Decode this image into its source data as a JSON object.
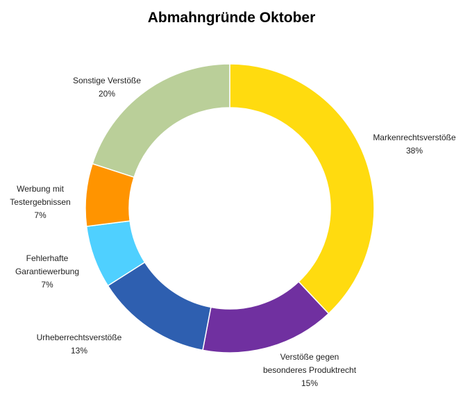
{
  "chart_data": {
    "type": "pie",
    "variant": "donut",
    "title": "Abmahngründe Oktober",
    "legend": "none",
    "slices": [
      {
        "label": [
          "Markenrechtsverstöße"
        ],
        "percent_label": "38%",
        "value": 38,
        "color": "#FFDB0F"
      },
      {
        "label": [
          "Verstöße gegen",
          "besonderes Produktrecht"
        ],
        "percent_label": "15%",
        "value": 15,
        "color": "#7030A0"
      },
      {
        "label": [
          "Urheberrechtsverstöße"
        ],
        "percent_label": "13%",
        "value": 13,
        "color": "#2E5FB0"
      },
      {
        "label": [
          "Fehlerhafte",
          "Garantiewerbung"
        ],
        "percent_label": "7%",
        "value": 7,
        "color": "#4FD0FF"
      },
      {
        "label": [
          "Werbung mit",
          "Testergebnissen"
        ],
        "percent_label": "7%",
        "value": 7,
        "color": "#FF9400"
      },
      {
        "label": [
          "Sonstige Verstöße"
        ],
        "percent_label": "20%",
        "value": 20,
        "color": "#BACF99"
      }
    ]
  }
}
